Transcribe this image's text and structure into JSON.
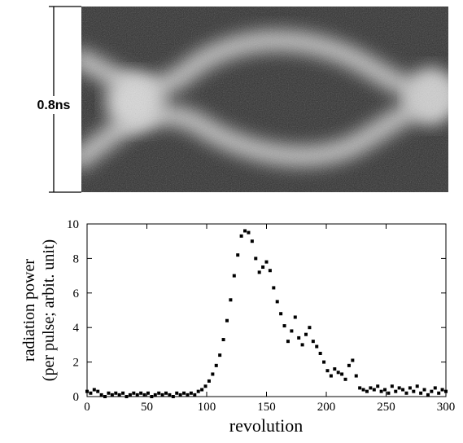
{
  "image_label": "0.8ns",
  "chart_data": {
    "type": "scatter",
    "xlabel": "revolution",
    "ylabel": [
      "radiation power",
      "(per pulse;  arbit. unit)"
    ],
    "color": "#000000",
    "xlim": [
      0,
      300
    ],
    "xticks": [
      0,
      50,
      100,
      150,
      200,
      250,
      300
    ],
    "ylim": [
      0,
      10
    ],
    "yticks": [
      0,
      2,
      4,
      6,
      8,
      10
    ],
    "x": [
      0,
      3,
      6,
      9,
      12,
      15,
      18,
      21,
      24,
      27,
      30,
      33,
      36,
      39,
      42,
      45,
      48,
      51,
      54,
      57,
      60,
      63,
      66,
      69,
      72,
      75,
      78,
      81,
      84,
      87,
      90,
      93,
      96,
      99,
      102,
      105,
      108,
      111,
      114,
      117,
      120,
      123,
      126,
      129,
      132,
      135,
      138,
      141,
      144,
      147,
      150,
      153,
      156,
      159,
      162,
      165,
      168,
      171,
      174,
      177,
      180,
      183,
      186,
      189,
      192,
      195,
      198,
      201,
      204,
      207,
      210,
      213,
      216,
      219,
      222,
      225,
      228,
      231,
      234,
      237,
      240,
      243,
      246,
      249,
      252,
      255,
      258,
      261,
      264,
      267,
      270,
      273,
      276,
      279,
      282,
      285,
      288,
      291,
      294,
      297,
      300
    ],
    "values": [
      0.3,
      0.2,
      0.4,
      0.3,
      0.1,
      0,
      0.2,
      0.1,
      0.2,
      0.1,
      0.2,
      0,
      0.1,
      0.2,
      0.1,
      0.2,
      0.1,
      0.2,
      0,
      0.1,
      0.2,
      0.1,
      0.2,
      0.1,
      0,
      0.2,
      0.1,
      0.2,
      0.1,
      0.2,
      0.1,
      0.3,
      0.4,
      0.6,
      0.9,
      1.3,
      1.8,
      2.4,
      3.3,
      4.4,
      5.6,
      7.0,
      8.2,
      9.3,
      9.6,
      9.5,
      9.0,
      8.0,
      7.2,
      7.5,
      7.8,
      7.3,
      6.3,
      5.5,
      4.8,
      4.1,
      3.2,
      3.8,
      4.6,
      3.4,
      3.0,
      3.6,
      4.0,
      3.2,
      2.9,
      2.5,
      2.0,
      1.5,
      1.2,
      1.6,
      1.4,
      1.3,
      1.0,
      1.8,
      2.1,
      1.2,
      0.5,
      0.4,
      0.3,
      0.5,
      0.4,
      0.6,
      0.3,
      0.4,
      0.2,
      0.6,
      0.3,
      0.5,
      0.4,
      0.2,
      0.5,
      0.3,
      0.6,
      0.2,
      0.4,
      0.1,
      0.3,
      0.5,
      0.2,
      0.4,
      0.3
    ]
  }
}
